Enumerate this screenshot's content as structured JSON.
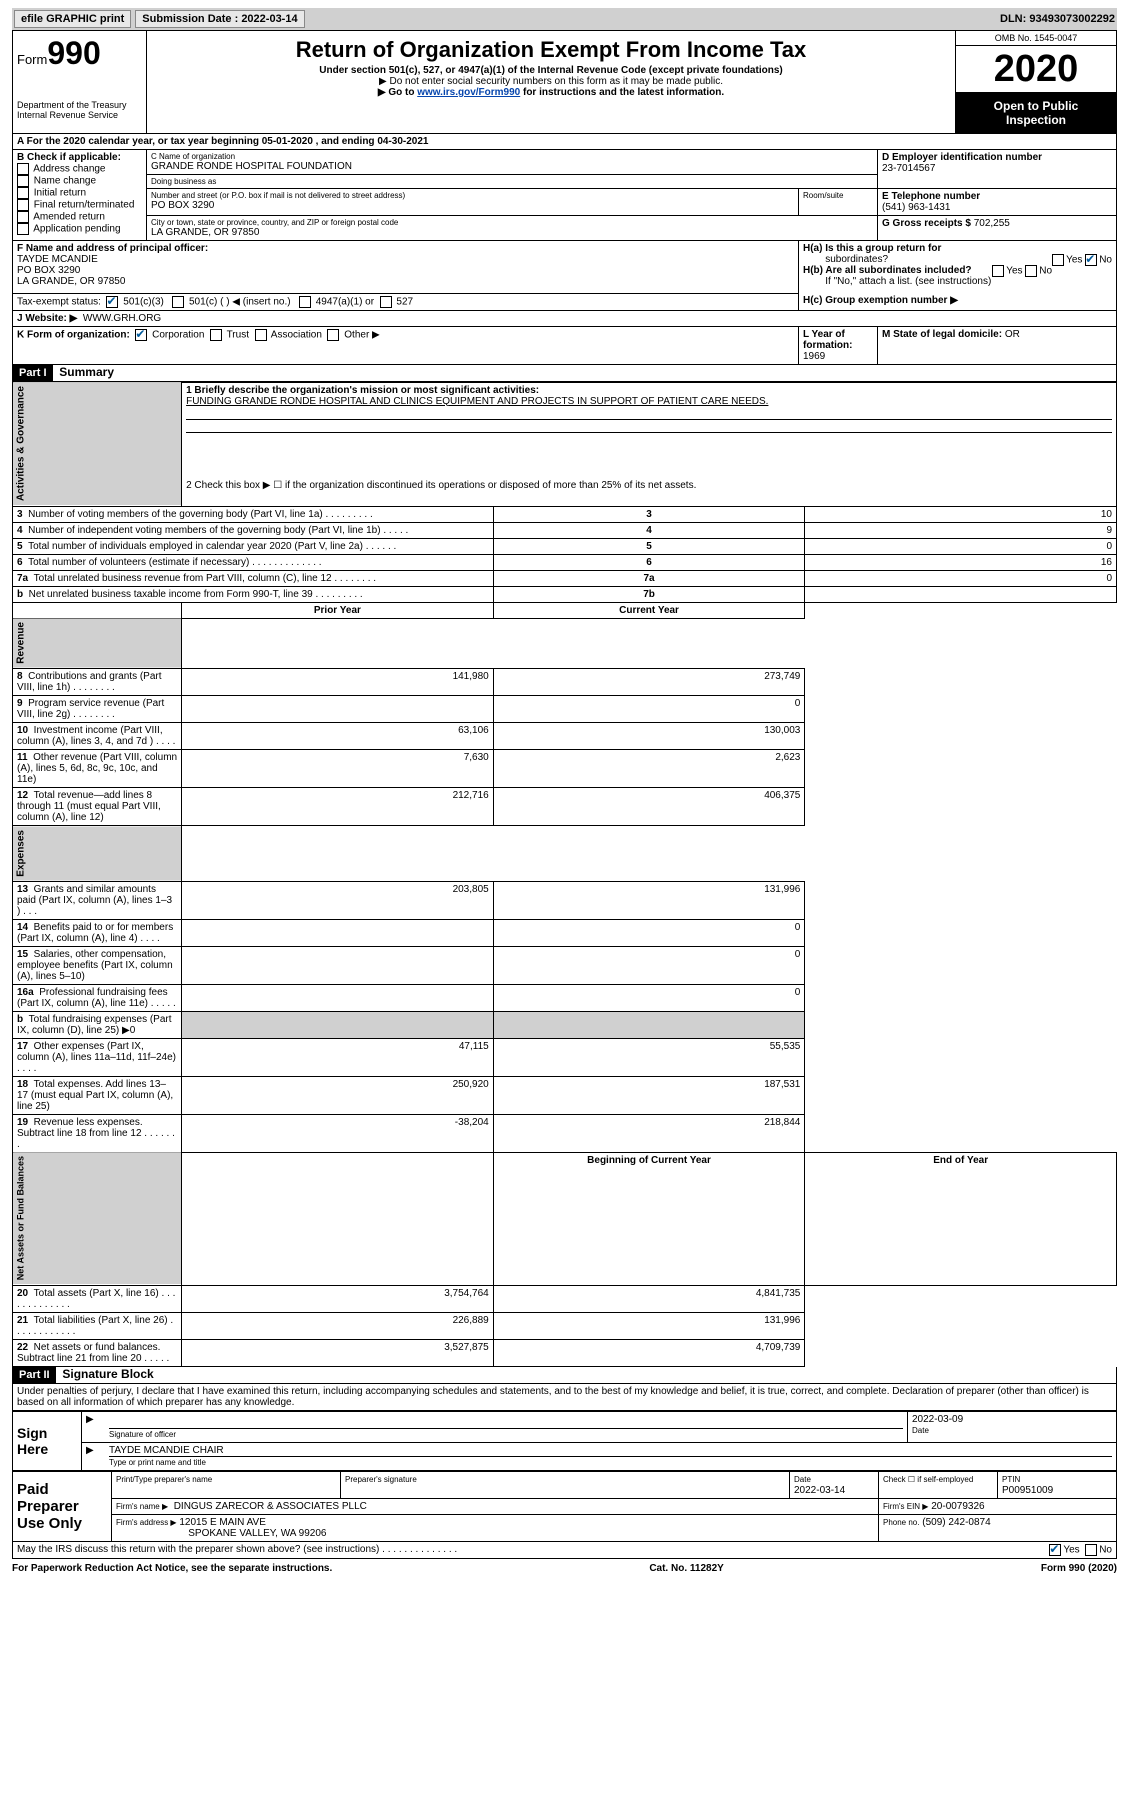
{
  "topbar": {
    "efile": "efile GRAPHIC print",
    "submission_label": "Submission Date : 2022-03-14",
    "dln": "DLN: 93493073002292"
  },
  "header": {
    "form_prefix": "Form",
    "form_number": "990",
    "title": "Return of Organization Exempt From Income Tax",
    "sub1": "Under section 501(c), 527, or 4947(a)(1) of the Internal Revenue Code (except private foundations)",
    "sub2": "▶ Do not enter social security numbers on this form as it may be made public.",
    "sub3_pre": "▶ Go to ",
    "sub3_link": "www.irs.gov/Form990",
    "sub3_post": " for instructions and the latest information.",
    "dept1": "Department of the Treasury",
    "dept2": "Internal Revenue Service",
    "omb": "OMB No. 1545-0047",
    "year": "2020",
    "insp1": "Open to Public",
    "insp2": "Inspection"
  },
  "lineA": "A For the 2020 calendar year, or tax year beginning 05-01-2020     , and ending 04-30-2021",
  "boxB": {
    "title": "B Check if applicable:",
    "items": [
      "Address change",
      "Name change",
      "Initial return",
      "Final return/terminated",
      "Amended return",
      "Application pending"
    ]
  },
  "boxC": {
    "label": "C Name of organization",
    "name": "GRANDE RONDE HOSPITAL FOUNDATION",
    "dba_label": "Doing business as",
    "dba": "",
    "street_label": "Number and street (or P.O. box if mail is not delivered to street address)",
    "street": "PO BOX 3290",
    "room_label": "Room/suite",
    "city_label": "City or town, state or province, country, and ZIP or foreign postal code",
    "city": "LA GRANDE, OR  97850"
  },
  "boxD": {
    "label": "D Employer identification number",
    "ein": "23-7014567"
  },
  "boxE": {
    "label": "E Telephone number",
    "phone": "(541) 963-1431"
  },
  "boxG": {
    "label": "G Gross receipts $",
    "amount": "702,255"
  },
  "boxF": {
    "label": "F Name and address of principal officer:",
    "name": "TAYDE MCANDIE",
    "addr1": "PO BOX 3290",
    "addr2": "LA GRANDE, OR  97850"
  },
  "boxH": {
    "a": "H(a)  Is this a group return for",
    "a2": "subordinates?",
    "b": "H(b)  Are all subordinates included?",
    "bnote": "If \"No,\" attach a list. (see instructions)",
    "c": "H(c)  Group exemption number ▶",
    "yes": "Yes",
    "no": "No"
  },
  "boxI": {
    "label": "Tax-exempt status:",
    "c3": "501(c)(3)",
    "c": "501(c) (   ) ◀ (insert no.)",
    "a": "4947(a)(1) or",
    "five27": "527"
  },
  "boxJ": {
    "label": "J    Website: ▶",
    "url": "WWW.GRH.ORG"
  },
  "boxK": {
    "label": "K Form of organization:",
    "corp": "Corporation",
    "trust": "Trust",
    "assoc": "Association",
    "other": "Other ▶"
  },
  "boxL": {
    "label": "L Year of formation:",
    "year": "1969"
  },
  "boxM": {
    "label": "M State of legal domicile:",
    "state": "OR"
  },
  "part1": {
    "header": "Part I",
    "title": "Summary",
    "q1": "1   Briefly describe the organization's mission or most significant activities:",
    "mission": "FUNDING GRANDE RONDE HOSPITAL AND CLINICS EQUIPMENT AND PROJECTS IN SUPPORT OF PATIENT CARE NEEDS.",
    "q2": "2   Check this box ▶ ☐  if the organization discontinued its operations or disposed of more than 25% of its net assets.",
    "rows_gov": [
      {
        "n": "3",
        "t": "Number of voting members of the governing body (Part VI, line 1a)   .   .   .   .   .   .   .   .   .",
        "b": "3",
        "v": "10"
      },
      {
        "n": "4",
        "t": "Number of independent voting members of the governing body (Part VI, line 1b)   .   .   .   .   .",
        "b": "4",
        "v": "9"
      },
      {
        "n": "5",
        "t": "Total number of individuals employed in calendar year 2020 (Part V, line 2a)   .   .   .   .   .   .",
        "b": "5",
        "v": "0"
      },
      {
        "n": "6",
        "t": "Total number of volunteers (estimate if necessary)   .   .   .   .   .   .   .   .   .   .   .   .   .",
        "b": "6",
        "v": "16"
      },
      {
        "n": "7a",
        "t": "Total unrelated business revenue from Part VIII, column (C), line 12   .   .   .   .   .   .   .   .",
        "b": "7a",
        "v": "0"
      },
      {
        "n": "b",
        "t": "Net unrelated business taxable income from Form 990-T, line 39   .   .   .   .   .   .   .   .   .",
        "b": "7b",
        "v": ""
      }
    ],
    "col_prior": "Prior Year",
    "col_current": "Current Year",
    "rows_rev": [
      {
        "n": "8",
        "t": "Contributions and grants (Part VIII, line 1h)   .   .   .   .   .   .   .   .",
        "p": "141,980",
        "c": "273,749"
      },
      {
        "n": "9",
        "t": "Program service revenue (Part VIII, line 2g)   .   .   .   .   .   .   .   .",
        "p": "",
        "c": "0"
      },
      {
        "n": "10",
        "t": "Investment income (Part VIII, column (A), lines 3, 4, and 7d )   .   .   .   .",
        "p": "63,106",
        "c": "130,003"
      },
      {
        "n": "11",
        "t": "Other revenue (Part VIII, column (A), lines 5, 6d, 8c, 9c, 10c, and 11e)",
        "p": "7,630",
        "c": "2,623"
      },
      {
        "n": "12",
        "t": "Total revenue—add lines 8 through 11 (must equal Part VIII, column (A), line 12)",
        "p": "212,716",
        "c": "406,375"
      }
    ],
    "rows_exp": [
      {
        "n": "13",
        "t": "Grants and similar amounts paid (Part IX, column (A), lines 1–3 )   .   .   .",
        "p": "203,805",
        "c": "131,996"
      },
      {
        "n": "14",
        "t": "Benefits paid to or for members (Part IX, column (A), line 4)   .   .   .   .",
        "p": "",
        "c": "0"
      },
      {
        "n": "15",
        "t": "Salaries, other compensation, employee benefits (Part IX, column (A), lines 5–10)",
        "p": "",
        "c": "0"
      },
      {
        "n": "16a",
        "t": "Professional fundraising fees (Part IX, column (A), line 11e)   .   .   .   .   .",
        "p": "",
        "c": "0"
      },
      {
        "n": "b",
        "t": "Total fundraising expenses (Part IX, column (D), line 25) ▶0",
        "p": null,
        "c": null
      },
      {
        "n": "17",
        "t": "Other expenses (Part IX, column (A), lines 11a–11d, 11f–24e)   .   .   .   .",
        "p": "47,115",
        "c": "55,535"
      },
      {
        "n": "18",
        "t": "Total expenses. Add lines 13–17 (must equal Part IX, column (A), line 25)",
        "p": "250,920",
        "c": "187,531"
      },
      {
        "n": "19",
        "t": "Revenue less expenses. Subtract line 18 from line 12   .   .   .   .   .   .   .",
        "p": "-38,204",
        "c": "218,844"
      }
    ],
    "col_begin": "Beginning of Current Year",
    "col_end": "End of Year",
    "rows_net": [
      {
        "n": "20",
        "t": "Total assets (Part X, line 16)   .   .   .   .   .   .   .   .   .   .   .   .   .",
        "p": "3,754,764",
        "c": "4,841,735"
      },
      {
        "n": "21",
        "t": "Total liabilities (Part X, line 26)   .   .   .   .   .   .   .   .   .   .   .   .",
        "p": "226,889",
        "c": "131,996"
      },
      {
        "n": "22",
        "t": "Net assets or fund balances. Subtract line 21 from line 20   .   .   .   .   .",
        "p": "3,527,875",
        "c": "4,709,739"
      }
    ],
    "label_gov": "Activities & Governance",
    "label_rev": "Revenue",
    "label_exp": "Expenses",
    "label_net": "Net Assets or Fund Balances"
  },
  "part2": {
    "header": "Part II",
    "title": "Signature Block",
    "decl": "Under penalties of perjury, I declare that I have examined this return, including accompanying schedules and statements, and to the best of my knowledge and belief, it is true, correct, and complete. Declaration of preparer (other than officer) is based on all information of which preparer has any knowledge.",
    "sign_here": "Sign Here",
    "sig_officer": "Signature of officer",
    "date_label": "Date",
    "sig_date": "2022-03-09",
    "officer_name": "TAYDE MCANDIE  CHAIR",
    "type_print": "Type or print name and title",
    "paid": "Paid Preparer Use Only",
    "prep_name_label": "Print/Type preparer's name",
    "prep_sig_label": "Preparer's signature",
    "prep_date_label": "Date",
    "prep_date": "2022-03-14",
    "check_label": "Check ☐ if self-employed",
    "ptin_label": "PTIN",
    "ptin": "P00951009",
    "firm_name_label": "Firm's name    ▶",
    "firm_name": "DINGUS ZARECOR & ASSOCIATES PLLC",
    "firm_ein_label": "Firm's EIN ▶",
    "firm_ein": "20-0079326",
    "firm_addr_label": "Firm's address ▶",
    "firm_addr1": "12015 E MAIN AVE",
    "firm_addr2": "SPOKANE VALLEY, WA  99206",
    "phone_label": "Phone no.",
    "phone": "(509) 242-0874",
    "discuss": "May the IRS discuss this return with the preparer shown above? (see instructions)   .   .   .   .   .   .   .   .   .   .   .   .   .   .",
    "yes": "Yes",
    "no": "No"
  },
  "footer": {
    "left": "For Paperwork Reduction Act Notice, see the separate instructions.",
    "mid": "Cat. No. 11282Y",
    "right": "Form 990 (2020)"
  }
}
